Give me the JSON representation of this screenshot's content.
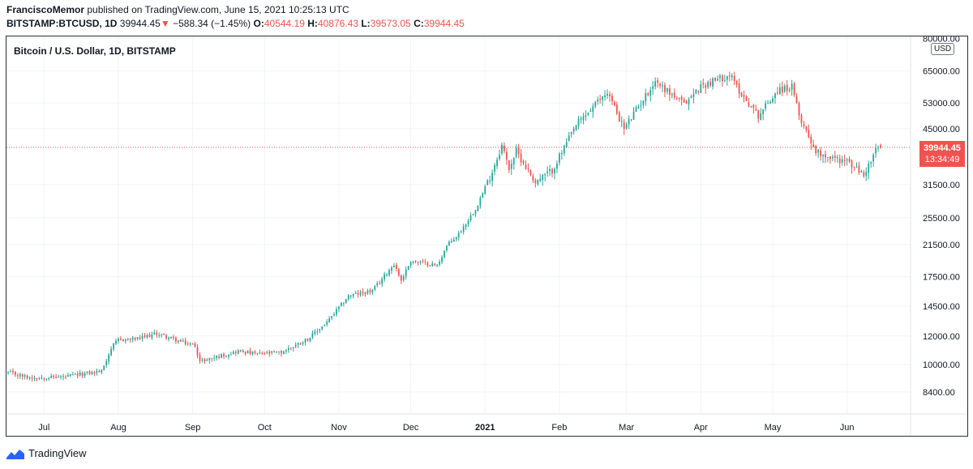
{
  "header": {
    "author": "FranciscoMemor",
    "published_text": "published on TradingView.com, June 15, 2021 10:25:13 UTC",
    "symbol": "BITSTAMP:BTCUSD, 1D",
    "last": "39944.45",
    "change_arrow": "▼",
    "change": "−588.34 (−1.45%)",
    "o_label": "O:",
    "o_value": "40544.19",
    "h_label": "H:",
    "h_value": "40876.43",
    "l_label": "L:",
    "l_value": "39573.05",
    "c_label": "C:",
    "c_value": "39944.45"
  },
  "chart": {
    "title": "Bitcoin / U.S. Dollar, 1D, BITSTAMP",
    "currency": "USD",
    "last_price": "39944.45",
    "countdown": "13:34:49"
  },
  "footer": {
    "brand": "TradingView"
  },
  "colors": {
    "up": "#26a69a",
    "down": "#ef5350",
    "grid": "#f0f3fa",
    "axis_text": "#131722",
    "price_line": "#ef5350"
  },
  "chart_data": {
    "type": "candlestick",
    "title": "Bitcoin / U.S. Dollar, 1D, BITSTAMP",
    "ylabel": "USD",
    "yscale": "log",
    "ylim": [
      7300,
      81000
    ],
    "y_ticks": [
      "8400.00",
      "10000.00",
      "12000.00",
      "14500.00",
      "17500.00",
      "21500.00",
      "25500.00",
      "31500.00",
      "45000.00",
      "53000.00",
      "65000.00",
      "80000.00"
    ],
    "x_ticks": [
      "Jul",
      "Aug",
      "Sep",
      "Oct",
      "Nov",
      "Dec",
      "2021",
      "Feb",
      "Mar",
      "Apr",
      "May",
      "Jun"
    ],
    "x_tick_dates": [
      "2020-07-01",
      "2020-08-01",
      "2020-09-01",
      "2020-10-01",
      "2020-11-01",
      "2020-12-01",
      "2021-01-01",
      "2021-02-01",
      "2021-03-01",
      "2021-04-01",
      "2021-05-01",
      "2021-06-01"
    ],
    "start_date": "2020-06-16",
    "end_date": "2021-06-15",
    "close_anchors": [
      [
        "2020-06-16",
        9500
      ],
      [
        "2020-06-25",
        9200
      ],
      [
        "2020-07-10",
        9250
      ],
      [
        "2020-07-25",
        9600
      ],
      [
        "2020-07-29",
        11100
      ],
      [
        "2020-08-01",
        11700
      ],
      [
        "2020-08-10",
        11800
      ],
      [
        "2020-08-17",
        12200
      ],
      [
        "2020-08-28",
        11500
      ],
      [
        "2020-09-02",
        11300
      ],
      [
        "2020-09-04",
        10200
      ],
      [
        "2020-09-20",
        10900
      ],
      [
        "2020-09-28",
        10700
      ],
      [
        "2020-10-08",
        10800
      ],
      [
        "2020-10-20",
        11900
      ],
      [
        "2020-10-28",
        13300
      ],
      [
        "2020-11-05",
        15500
      ],
      [
        "2020-11-15",
        16000
      ],
      [
        "2020-11-24",
        19000
      ],
      [
        "2020-11-27",
        17100
      ],
      [
        "2020-12-01",
        19400
      ],
      [
        "2020-12-12",
        18800
      ],
      [
        "2020-12-16",
        21300
      ],
      [
        "2020-12-21",
        23000
      ],
      [
        "2020-12-28",
        27000
      ],
      [
        "2021-01-03",
        33000
      ],
      [
        "2021-01-08",
        40500
      ],
      [
        "2021-01-11",
        35000
      ],
      [
        "2021-01-14",
        39000
      ],
      [
        "2021-01-22",
        32000
      ],
      [
        "2021-01-29",
        34500
      ],
      [
        "2021-02-08",
        46000
      ],
      [
        "2021-02-21",
        57000
      ],
      [
        "2021-02-28",
        45000
      ],
      [
        "2021-03-13",
        61000
      ],
      [
        "2021-03-25",
        52500
      ],
      [
        "2021-04-01",
        59000
      ],
      [
        "2021-04-13",
        63500
      ],
      [
        "2021-04-18",
        56000
      ],
      [
        "2021-04-25",
        49000
      ],
      [
        "2021-05-03",
        57500
      ],
      [
        "2021-05-09",
        58500
      ],
      [
        "2021-05-12",
        49000
      ],
      [
        "2021-05-19",
        39000
      ],
      [
        "2021-05-25",
        37500
      ],
      [
        "2021-06-01",
        36500
      ],
      [
        "2021-06-08",
        33500
      ],
      [
        "2021-06-13",
        39000
      ],
      [
        "2021-06-15",
        39944
      ]
    ],
    "last": {
      "open": 40544.19,
      "high": 40876.43,
      "low": 39573.05,
      "close": 39944.45
    }
  }
}
